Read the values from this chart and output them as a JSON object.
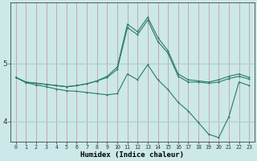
{
  "xlabel": "Humidex (Indice chaleur)",
  "bg_color": "#cce8e8",
  "line_color": "#2a7a6a",
  "grid_color_v": "#c4a0a0",
  "grid_color_h": "#a8d0d0",
  "xlim": [
    -0.5,
    23.5
  ],
  "ylim": [
    3.65,
    6.05
  ],
  "yticks": [
    4,
    5
  ],
  "xticks": [
    0,
    1,
    2,
    3,
    4,
    5,
    6,
    7,
    8,
    9,
    10,
    11,
    12,
    13,
    14,
    15,
    16,
    17,
    18,
    19,
    20,
    21,
    22,
    23
  ],
  "line1_x": [
    0,
    1,
    2,
    3,
    4,
    5,
    6,
    7,
    8,
    9,
    10,
    11,
    12,
    13,
    14,
    15,
    16,
    17,
    18,
    19,
    20,
    21,
    22,
    23
  ],
  "line1_y": [
    4.76,
    4.68,
    4.66,
    4.64,
    4.62,
    4.6,
    4.62,
    4.65,
    4.7,
    4.78,
    4.94,
    5.68,
    5.55,
    5.8,
    5.45,
    5.22,
    4.82,
    4.72,
    4.7,
    4.68,
    4.72,
    4.78,
    4.82,
    4.76
  ],
  "line2_x": [
    0,
    1,
    2,
    3,
    4,
    5,
    6,
    7,
    8,
    9,
    10,
    11,
    12,
    13,
    14,
    15,
    16,
    17,
    18,
    19,
    20,
    21,
    22,
    23
  ],
  "line2_y": [
    4.76,
    4.68,
    4.66,
    4.64,
    4.62,
    4.6,
    4.62,
    4.65,
    4.7,
    4.76,
    4.9,
    5.62,
    5.5,
    5.75,
    5.38,
    5.18,
    4.78,
    4.68,
    4.68,
    4.66,
    4.68,
    4.74,
    4.78,
    4.73
  ],
  "line3_x": [
    0,
    1,
    2,
    3,
    4,
    5,
    6,
    7,
    8,
    9,
    10,
    11,
    12,
    13,
    14,
    15,
    16,
    17,
    18,
    19,
    20,
    21,
    22,
    23
  ],
  "line3_y": [
    4.76,
    4.67,
    4.63,
    4.6,
    4.56,
    4.53,
    4.52,
    4.5,
    4.48,
    4.46,
    4.48,
    4.82,
    4.72,
    4.98,
    4.72,
    4.55,
    4.33,
    4.18,
    3.98,
    3.78,
    3.72,
    4.08,
    4.68,
    4.62
  ]
}
